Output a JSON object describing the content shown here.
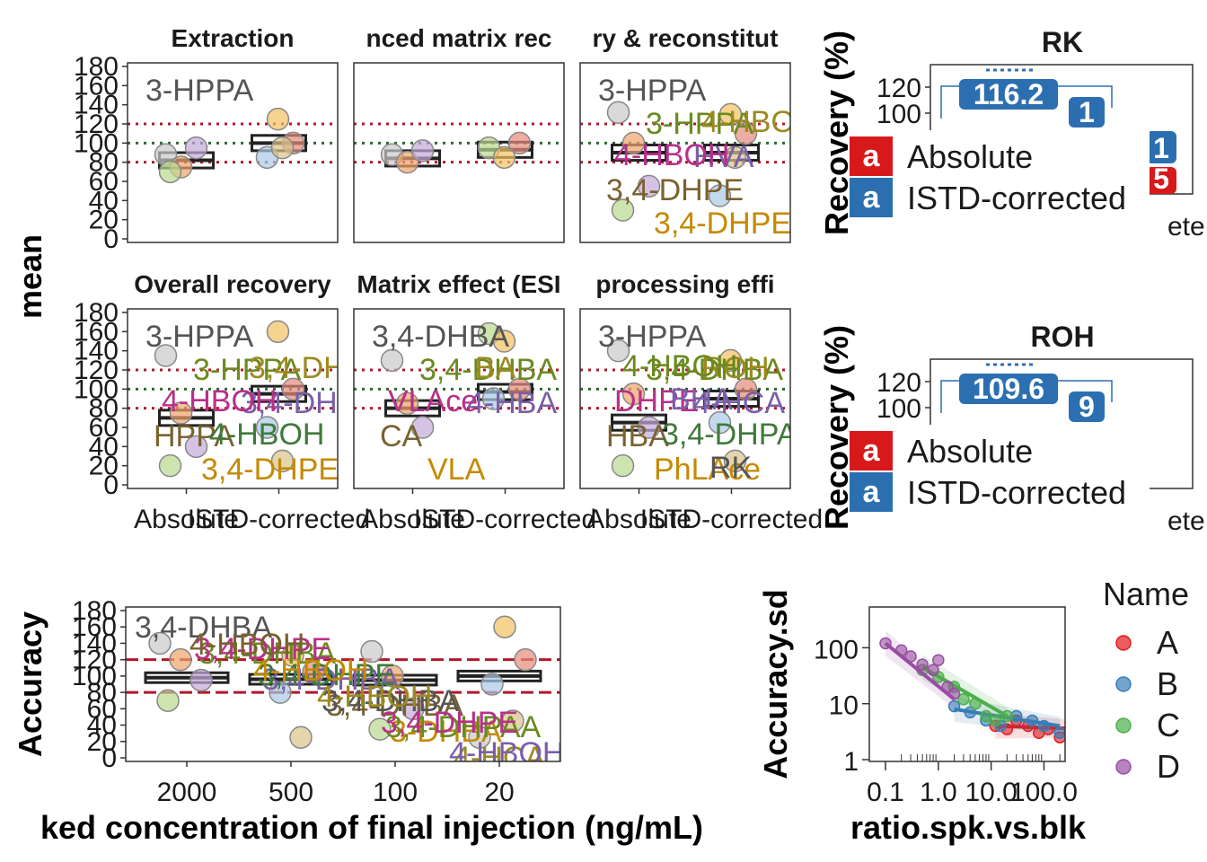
{
  "chart_data": [
    {
      "type": "box",
      "panel": "recovery-facets",
      "ylabel": "mean",
      "ylim": [
        0,
        180
      ],
      "yticks": [
        0,
        20,
        40,
        60,
        80,
        100,
        120,
        140,
        160,
        180
      ],
      "reference_lines": [
        80,
        100,
        120
      ],
      "categories": [
        "Absolute",
        "ISTD-corrected"
      ],
      "facets": [
        {
          "title": "Extraction",
          "box_means": [
            82,
            100
          ],
          "points": [
            [
              0,
              88
            ],
            [
              0,
              75
            ],
            [
              0,
              95
            ],
            [
              0,
              70
            ],
            [
              1,
              125
            ],
            [
              1,
              100
            ],
            [
              1,
              85
            ],
            [
              1,
              95
            ]
          ],
          "labels": [
            "3-HPPA"
          ]
        },
        {
          "title": "nced matrix rec",
          "box_means": [
            84,
            93
          ],
          "points": [
            [
              0,
              88
            ],
            [
              0,
              80
            ],
            [
              0,
              92
            ],
            [
              1,
              95
            ],
            [
              1,
              85
            ],
            [
              1,
              100
            ]
          ],
          "labels": []
        },
        {
          "title": "ry & reconstitut",
          "box_means": [
            90,
            90
          ],
          "points": [
            [
              0,
              132
            ],
            [
              0,
              100
            ],
            [
              0,
              55
            ],
            [
              0,
              30
            ],
            [
              1,
              130
            ],
            [
              1,
              110
            ],
            [
              1,
              45
            ],
            [
              1,
              85
            ]
          ],
          "labels": [
            "3-HPPA",
            "3-HPPA",
            "HVA",
            "3,4-DHPE",
            "3,4-DHPE",
            "4-HBOH",
            "4-HBOH"
          ]
        },
        {
          "title": "Overall recovery",
          "box_means": [
            70,
            95
          ],
          "points": [
            [
              0,
              135
            ],
            [
              0,
              75
            ],
            [
              0,
              40
            ],
            [
              0,
              20
            ],
            [
              1,
              160
            ],
            [
              1,
              100
            ],
            [
              1,
              60
            ],
            [
              1,
              25
            ]
          ],
          "labels": [
            "3-HPPA",
            "3-HPPA",
            "3,4-DHBA",
            "HPPA",
            "3,4-DHPE",
            "3,4-DHPE",
            "4-HBOH",
            "4-HBOH"
          ]
        },
        {
          "title": "Matrix effect (ESI",
          "box_means": [
            80,
            97
          ],
          "points": [
            [
              0,
              130
            ],
            [
              0,
              85
            ],
            [
              0,
              60
            ],
            [
              1,
              158
            ],
            [
              1,
              150
            ],
            [
              1,
              100
            ],
            [
              1,
              90
            ]
          ],
          "labels": [
            "3,4-DHBA",
            "3,4-DHBA",
            "4-HBA",
            "CA",
            "VLA",
            "BA",
            "VLAce"
          ]
        },
        {
          "title": "processing effi",
          "box_means": [
            65,
            90
          ],
          "points": [
            [
              0,
              140
            ],
            [
              0,
              95
            ],
            [
              0,
              60
            ],
            [
              0,
              20
            ],
            [
              1,
              130
            ],
            [
              1,
              100
            ],
            [
              1,
              65
            ],
            [
              1,
              25
            ]
          ],
          "labels": [
            "3-HPPA",
            "3,4-DHBA",
            "4-HCA",
            "HBA",
            "PhLAce",
            "ROH",
            "DHPE",
            "3,4-DHPAA",
            "RK",
            "4-HBOH",
            "BHA"
          ]
        }
      ]
    },
    {
      "type": "bar",
      "panel": "RK",
      "title": "RK",
      "ylabel": "Recovery (%)",
      "yticks": [
        100,
        120
      ],
      "visible_values": [
        "116.2",
        "1",
        "1",
        "5"
      ],
      "legend": [
        "Absolute",
        "ISTD-corrected"
      ],
      "legend_badge": "a",
      "x_tick_text": "ete",
      "colors": {
        "absolute": "#d7191c",
        "istd": "#2c6fb0"
      }
    },
    {
      "type": "bar",
      "panel": "ROH",
      "title": "ROH",
      "ylabel": "Recovery (%)",
      "yticks": [
        100,
        120
      ],
      "visible_values": [
        "109.6",
        "9"
      ],
      "legend": [
        "Absolute",
        "ISTD-corrected"
      ],
      "legend_badge": "a",
      "x_tick_text": "ete",
      "colors": {
        "absolute": "#d7191c",
        "istd": "#2c6fb0"
      }
    },
    {
      "type": "box",
      "panel": "accuracy",
      "xlabel": "ked concentration of final injection (ng/mL)",
      "ylabel": "Accuracy",
      "categories": [
        "2000",
        "500",
        "100",
        "20"
      ],
      "ylim": [
        0,
        180
      ],
      "yticks": [
        0,
        20,
        40,
        60,
        80,
        100,
        120,
        140,
        160,
        180
      ],
      "reference_lines": [
        80,
        120
      ],
      "box_means": [
        98,
        96,
        95,
        100
      ],
      "points": [
        [
          0,
          140
        ],
        [
          0,
          120
        ],
        [
          0,
          95
        ],
        [
          0,
          70
        ],
        [
          1,
          125
        ],
        [
          1,
          105
        ],
        [
          1,
          80
        ],
        [
          1,
          25
        ],
        [
          2,
          130
        ],
        [
          2,
          100
        ],
        [
          2,
          60
        ],
        [
          2,
          35
        ],
        [
          3,
          160
        ],
        [
          3,
          120
        ],
        [
          3,
          90
        ],
        [
          3,
          45
        ],
        [
          3,
          25
        ]
      ],
      "labels": [
        "3,4-DHBA",
        "3,4-DHBA",
        "3,4-DHBA",
        "3,4-DHBA",
        "3-DHBA",
        "4-HCA",
        "3,4-DHPE",
        "3,4-DHPE",
        "3,4-DHBA",
        "3,4-DHPAA",
        "4-HBOH",
        "4-HBOH",
        "4-HBOH",
        "4-HBOH",
        "3,4-DHPE"
      ]
    },
    {
      "type": "scatter",
      "panel": "accuracy-sd",
      "xlabel": "ratio.spk.vs.blk",
      "ylabel": "Accuracy.sd",
      "x_scale": "log",
      "y_scale": "log",
      "xtick_labels": [
        "0.1",
        "1.0",
        "10.0",
        "100.0"
      ],
      "ytick_labels": [
        "1",
        "10",
        "100"
      ],
      "legend_title": "Name",
      "series": [
        {
          "name": "A",
          "color": "#e41a1c",
          "points": [
            [
              12,
              4
            ],
            [
              20,
              3.5
            ],
            [
              30,
              5
            ],
            [
              50,
              4
            ],
            [
              80,
              3
            ],
            [
              120,
              3.5
            ],
            [
              200,
              2.5
            ],
            [
              300,
              3
            ]
          ],
          "fit": [
            [
              12,
              4
            ],
            [
              300,
              3.6
            ]
          ]
        },
        {
          "name": "B",
          "color": "#377eb8",
          "points": [
            [
              2,
              9
            ],
            [
              4,
              7
            ],
            [
              8,
              5
            ],
            [
              15,
              4
            ],
            [
              30,
              6
            ],
            [
              60,
              5
            ],
            [
              100,
              4
            ],
            [
              200,
              3
            ]
          ],
          "fit": [
            [
              2,
              8
            ],
            [
              200,
              4
            ]
          ]
        },
        {
          "name": "C",
          "color": "#4daf4a",
          "points": [
            [
              0.5,
              40
            ],
            [
              1,
              30
            ],
            [
              2,
              20
            ],
            [
              3,
              12
            ],
            [
              5,
              10
            ],
            [
              8,
              6
            ],
            [
              12,
              5
            ],
            [
              20,
              6
            ]
          ],
          "fit": [
            [
              0.5,
              45
            ],
            [
              20,
              6
            ]
          ]
        },
        {
          "name": "D",
          "color": "#984ea3",
          "points": [
            [
              0.1,
              120
            ],
            [
              0.2,
              90
            ],
            [
              0.3,
              70
            ],
            [
              0.5,
              50
            ],
            [
              0.8,
              40
            ],
            [
              1,
              60
            ],
            [
              1.5,
              20
            ],
            [
              2,
              15
            ]
          ],
          "fit": [
            [
              0.1,
              120
            ],
            [
              2,
              12
            ]
          ]
        }
      ]
    }
  ]
}
